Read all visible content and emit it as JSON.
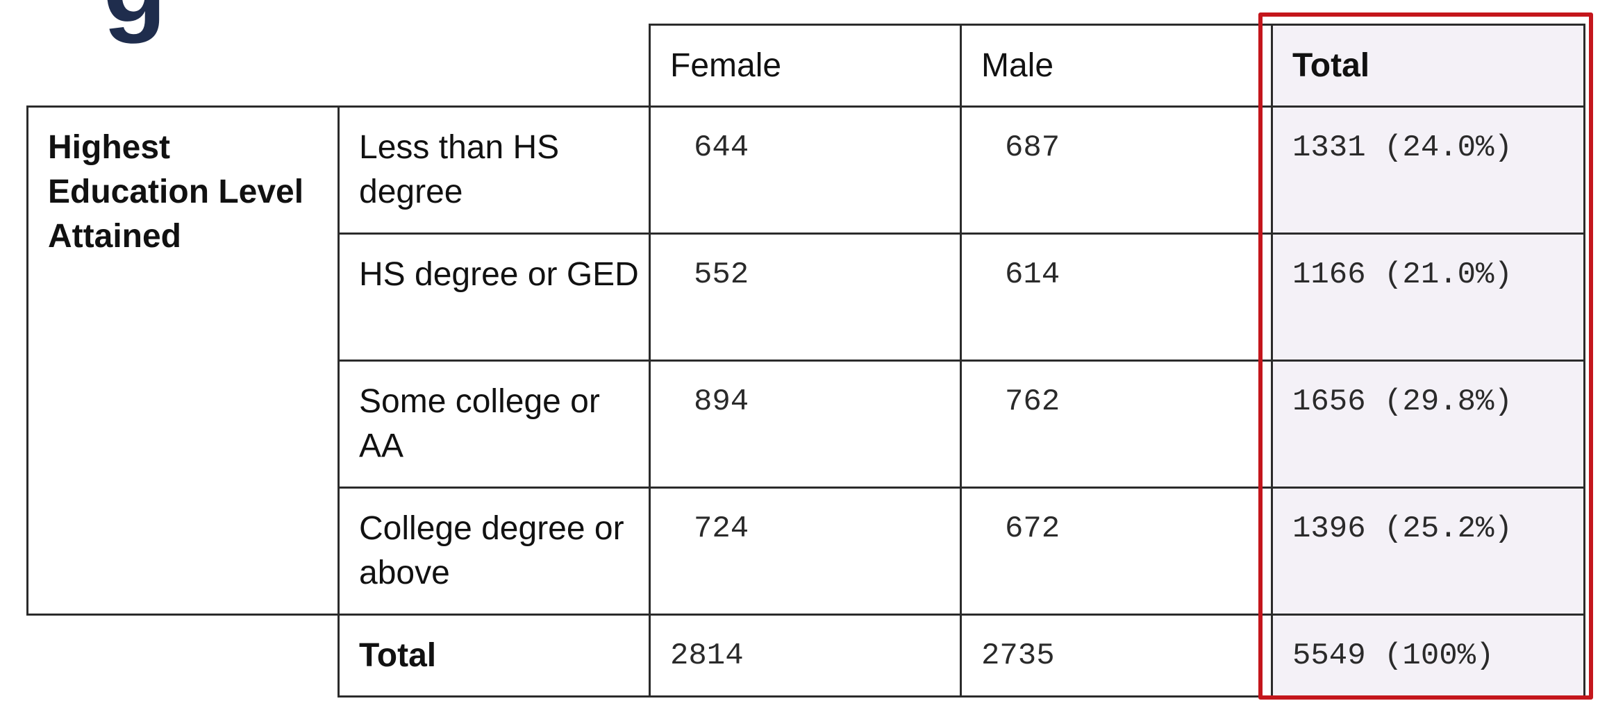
{
  "title_fragment": "g",
  "table": {
    "columns": [
      "Female",
      "Male",
      "Total"
    ],
    "row_group_label": "Highest Education Level Attained",
    "rows": [
      {
        "label": "Less than HS degree",
        "female": "644",
        "male": "687",
        "total": "1331 (24.0%)"
      },
      {
        "label": "HS degree or GED",
        "female": "552",
        "male": "614",
        "total": "1166 (21.0%)"
      },
      {
        "label": "Some college or AA",
        "female": "894",
        "male": "762",
        "total": "1656 (29.8%)"
      },
      {
        "label": "College degree or above",
        "female": "724",
        "male": "672",
        "total": "1396 (25.2%)"
      }
    ],
    "total_row": {
      "label": "Total",
      "female": "2814",
      "male": "2735",
      "total": "5549 (100%)"
    }
  },
  "highlight": {
    "target": "Total column",
    "color": "#c4161c"
  }
}
